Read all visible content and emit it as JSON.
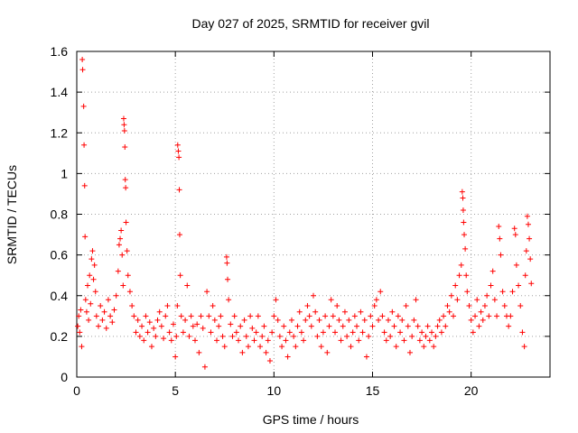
{
  "chart_data": {
    "type": "scatter",
    "title": "Day 027 of 2025, SRMTID for receiver gvil",
    "xlabel": "GPS time / hours",
    "ylabel": "SRMTID / TECUs",
    "xlim": [
      0,
      24
    ],
    "ylim": [
      0,
      1.6
    ],
    "xticks": [
      0,
      5,
      10,
      15,
      20
    ],
    "xtick_labels": [
      "0",
      "5",
      "10",
      "15",
      "20"
    ],
    "yticks": [
      0,
      0.2,
      0.4,
      0.6,
      0.8,
      1,
      1.2,
      1.4,
      1.6
    ],
    "ytick_labels": [
      "0",
      "0.2",
      "0.4",
      "0.6",
      "0.8",
      "1",
      "1.2",
      "1.4",
      "1.6"
    ],
    "grid": true,
    "marker": "plus",
    "color": "#ff0000",
    "series": [
      {
        "name": "SRMTID",
        "points": [
          [
            0.05,
            0.25
          ],
          [
            0.1,
            0.3
          ],
          [
            0.15,
            0.22
          ],
          [
            0.2,
            0.33
          ],
          [
            0.25,
            0.15
          ],
          [
            0.28,
            1.56
          ],
          [
            0.3,
            1.51
          ],
          [
            0.35,
            1.33
          ],
          [
            0.37,
            1.14
          ],
          [
            0.4,
            0.94
          ],
          [
            0.42,
            0.69
          ],
          [
            0.45,
            0.38
          ],
          [
            0.5,
            0.32
          ],
          [
            0.55,
            0.45
          ],
          [
            0.6,
            0.28
          ],
          [
            0.65,
            0.5
          ],
          [
            0.7,
            0.36
          ],
          [
            0.75,
            0.58
          ],
          [
            0.8,
            0.62
          ],
          [
            0.85,
            0.48
          ],
          [
            0.9,
            0.55
          ],
          [
            0.95,
            0.42
          ],
          [
            1.0,
            0.3
          ],
          [
            1.1,
            0.25
          ],
          [
            1.2,
            0.35
          ],
          [
            1.3,
            0.28
          ],
          [
            1.4,
            0.32
          ],
          [
            1.5,
            0.24
          ],
          [
            1.6,
            0.38
          ],
          [
            1.7,
            0.3
          ],
          [
            1.8,
            0.27
          ],
          [
            1.9,
            0.33
          ],
          [
            2.0,
            0.4
          ],
          [
            2.1,
            0.52
          ],
          [
            2.15,
            0.65
          ],
          [
            2.2,
            0.68
          ],
          [
            2.25,
            0.72
          ],
          [
            2.3,
            0.6
          ],
          [
            2.35,
            0.45
          ],
          [
            2.38,
            1.27
          ],
          [
            2.4,
            1.24
          ],
          [
            2.42,
            1.21
          ],
          [
            2.44,
            1.13
          ],
          [
            2.46,
            0.97
          ],
          [
            2.48,
            0.93
          ],
          [
            2.5,
            0.76
          ],
          [
            2.55,
            0.62
          ],
          [
            2.6,
            0.5
          ],
          [
            2.7,
            0.42
          ],
          [
            2.8,
            0.35
          ],
          [
            2.9,
            0.3
          ],
          [
            3.0,
            0.22
          ],
          [
            3.1,
            0.28
          ],
          [
            3.2,
            0.2
          ],
          [
            3.3,
            0.25
          ],
          [
            3.4,
            0.18
          ],
          [
            3.5,
            0.3
          ],
          [
            3.6,
            0.22
          ],
          [
            3.7,
            0.27
          ],
          [
            3.8,
            0.15
          ],
          [
            3.9,
            0.24
          ],
          [
            4.0,
            0.2
          ],
          [
            4.1,
            0.28
          ],
          [
            4.2,
            0.32
          ],
          [
            4.3,
            0.25
          ],
          [
            4.4,
            0.19
          ],
          [
            4.5,
            0.3
          ],
          [
            4.6,
            0.35
          ],
          [
            4.7,
            0.22
          ],
          [
            4.8,
            0.18
          ],
          [
            4.9,
            0.26
          ],
          [
            5.0,
            0.1
          ],
          [
            5.05,
            0.2
          ],
          [
            5.1,
            0.35
          ],
          [
            5.12,
            1.14
          ],
          [
            5.15,
            1.11
          ],
          [
            5.18,
            1.08
          ],
          [
            5.2,
            0.92
          ],
          [
            5.22,
            0.7
          ],
          [
            5.25,
            0.5
          ],
          [
            5.3,
            0.3
          ],
          [
            5.4,
            0.22
          ],
          [
            5.5,
            0.28
          ],
          [
            5.6,
            0.45
          ],
          [
            5.7,
            0.2
          ],
          [
            5.8,
            0.3
          ],
          [
            5.9,
            0.25
          ],
          [
            6.0,
            0.18
          ],
          [
            6.1,
            0.26
          ],
          [
            6.2,
            0.12
          ],
          [
            6.3,
            0.3
          ],
          [
            6.4,
            0.24
          ],
          [
            6.5,
            0.05
          ],
          [
            6.6,
            0.42
          ],
          [
            6.7,
            0.3
          ],
          [
            6.8,
            0.22
          ],
          [
            6.9,
            0.35
          ],
          [
            7.0,
            0.28
          ],
          [
            7.1,
            0.18
          ],
          [
            7.2,
            0.25
          ],
          [
            7.3,
            0.3
          ],
          [
            7.4,
            0.2
          ],
          [
            7.5,
            0.15
          ],
          [
            7.6,
            0.59
          ],
          [
            7.62,
            0.56
          ],
          [
            7.65,
            0.48
          ],
          [
            7.7,
            0.38
          ],
          [
            7.8,
            0.26
          ],
          [
            7.9,
            0.2
          ],
          [
            8.0,
            0.3
          ],
          [
            8.1,
            0.22
          ],
          [
            8.2,
            0.18
          ],
          [
            8.3,
            0.25
          ],
          [
            8.4,
            0.12
          ],
          [
            8.5,
            0.28
          ],
          [
            8.6,
            0.2
          ],
          [
            8.7,
            0.15
          ],
          [
            8.8,
            0.3
          ],
          [
            8.9,
            0.24
          ],
          [
            9.0,
            0.18
          ],
          [
            9.1,
            0.22
          ],
          [
            9.2,
            0.3
          ],
          [
            9.3,
            0.15
          ],
          [
            9.4,
            0.2
          ],
          [
            9.5,
            0.25
          ],
          [
            9.6,
            0.12
          ],
          [
            9.7,
            0.18
          ],
          [
            9.8,
            0.08
          ],
          [
            9.9,
            0.22
          ],
          [
            10.0,
            0.3
          ],
          [
            10.1,
            0.38
          ],
          [
            10.2,
            0.28
          ],
          [
            10.3,
            0.2
          ],
          [
            10.4,
            0.15
          ],
          [
            10.5,
            0.25
          ],
          [
            10.6,
            0.18
          ],
          [
            10.7,
            0.1
          ],
          [
            10.8,
            0.22
          ],
          [
            10.9,
            0.28
          ],
          [
            11.0,
            0.2
          ],
          [
            11.1,
            0.15
          ],
          [
            11.2,
            0.25
          ],
          [
            11.3,
            0.32
          ],
          [
            11.4,
            0.22
          ],
          [
            11.5,
            0.18
          ],
          [
            11.6,
            0.28
          ],
          [
            11.7,
            0.35
          ],
          [
            11.8,
            0.3
          ],
          [
            11.9,
            0.25
          ],
          [
            12.0,
            0.4
          ],
          [
            12.1,
            0.32
          ],
          [
            12.2,
            0.2
          ],
          [
            12.3,
            0.28
          ],
          [
            12.4,
            0.15
          ],
          [
            12.5,
            0.22
          ],
          [
            12.6,
            0.3
          ],
          [
            12.7,
            0.12
          ],
          [
            12.8,
            0.25
          ],
          [
            12.9,
            0.38
          ],
          [
            13.0,
            0.3
          ],
          [
            13.1,
            0.22
          ],
          [
            13.2,
            0.35
          ],
          [
            13.3,
            0.28
          ],
          [
            13.4,
            0.18
          ],
          [
            13.5,
            0.25
          ],
          [
            13.6,
            0.32
          ],
          [
            13.7,
            0.2
          ],
          [
            13.8,
            0.28
          ],
          [
            13.9,
            0.15
          ],
          [
            14.0,
            0.22
          ],
          [
            14.1,
            0.3
          ],
          [
            14.2,
            0.25
          ],
          [
            14.3,
            0.18
          ],
          [
            14.4,
            0.32
          ],
          [
            14.5,
            0.22
          ],
          [
            14.6,
            0.28
          ],
          [
            14.7,
            0.1
          ],
          [
            14.8,
            0.2
          ],
          [
            14.9,
            0.3
          ],
          [
            15.0,
            0.25
          ],
          [
            15.1,
            0.35
          ],
          [
            15.2,
            0.38
          ],
          [
            15.3,
            0.28
          ],
          [
            15.4,
            0.42
          ],
          [
            15.5,
            0.3
          ],
          [
            15.6,
            0.22
          ],
          [
            15.7,
            0.18
          ],
          [
            15.8,
            0.28
          ],
          [
            15.9,
            0.2
          ],
          [
            16.0,
            0.32
          ],
          [
            16.1,
            0.25
          ],
          [
            16.2,
            0.15
          ],
          [
            16.3,
            0.3
          ],
          [
            16.4,
            0.22
          ],
          [
            16.5,
            0.28
          ],
          [
            16.6,
            0.18
          ],
          [
            16.7,
            0.35
          ],
          [
            16.8,
            0.25
          ],
          [
            16.9,
            0.12
          ],
          [
            17.0,
            0.2
          ],
          [
            17.1,
            0.28
          ],
          [
            17.2,
            0.38
          ],
          [
            17.3,
            0.25
          ],
          [
            17.4,
            0.18
          ],
          [
            17.5,
            0.22
          ],
          [
            17.6,
            0.15
          ],
          [
            17.7,
            0.2
          ],
          [
            17.8,
            0.25
          ],
          [
            17.9,
            0.18
          ],
          [
            18.0,
            0.22
          ],
          [
            18.1,
            0.15
          ],
          [
            18.2,
            0.2
          ],
          [
            18.3,
            0.25
          ],
          [
            18.4,
            0.28
          ],
          [
            18.5,
            0.22
          ],
          [
            18.6,
            0.3
          ],
          [
            18.7,
            0.25
          ],
          [
            18.8,
            0.35
          ],
          [
            18.9,
            0.32
          ],
          [
            19.0,
            0.4
          ],
          [
            19.1,
            0.3
          ],
          [
            19.2,
            0.45
          ],
          [
            19.3,
            0.38
          ],
          [
            19.4,
            0.5
          ],
          [
            19.5,
            0.55
          ],
          [
            19.55,
            0.91
          ],
          [
            19.58,
            0.88
          ],
          [
            19.6,
            0.82
          ],
          [
            19.62,
            0.76
          ],
          [
            19.65,
            0.7
          ],
          [
            19.7,
            0.63
          ],
          [
            19.75,
            0.5
          ],
          [
            19.8,
            0.42
          ],
          [
            19.9,
            0.35
          ],
          [
            20.0,
            0.28
          ],
          [
            20.1,
            0.22
          ],
          [
            20.2,
            0.3
          ],
          [
            20.3,
            0.38
          ],
          [
            20.4,
            0.25
          ],
          [
            20.5,
            0.32
          ],
          [
            20.6,
            0.28
          ],
          [
            20.7,
            0.35
          ],
          [
            20.8,
            0.4
          ],
          [
            20.9,
            0.3
          ],
          [
            21.0,
            0.45
          ],
          [
            21.1,
            0.52
          ],
          [
            21.2,
            0.38
          ],
          [
            21.3,
            0.3
          ],
          [
            21.4,
            0.74
          ],
          [
            21.45,
            0.68
          ],
          [
            21.5,
            0.6
          ],
          [
            21.6,
            0.42
          ],
          [
            21.7,
            0.35
          ],
          [
            21.8,
            0.3
          ],
          [
            21.9,
            0.25
          ],
          [
            22.0,
            0.3
          ],
          [
            22.1,
            0.42
          ],
          [
            22.2,
            0.73
          ],
          [
            22.25,
            0.7
          ],
          [
            22.3,
            0.55
          ],
          [
            22.4,
            0.45
          ],
          [
            22.5,
            0.35
          ],
          [
            22.6,
            0.22
          ],
          [
            22.7,
            0.15
          ],
          [
            22.75,
            0.5
          ],
          [
            22.8,
            0.62
          ],
          [
            22.85,
            0.79
          ],
          [
            22.9,
            0.75
          ],
          [
            22.95,
            0.68
          ],
          [
            23.0,
            0.58
          ],
          [
            23.05,
            0.46
          ]
        ]
      }
    ]
  }
}
